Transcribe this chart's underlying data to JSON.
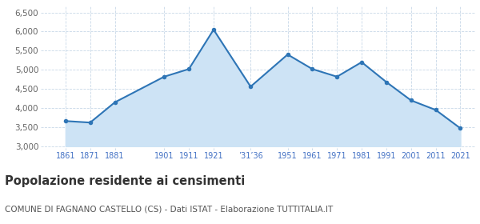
{
  "years": [
    1861,
    1871,
    1881,
    1901,
    1911,
    1921,
    1936,
    1951,
    1961,
    1971,
    1981,
    1991,
    2001,
    2011,
    2021
  ],
  "population": [
    3660,
    3620,
    4150,
    4820,
    5020,
    6050,
    4560,
    5400,
    5020,
    4820,
    5200,
    4680,
    4200,
    3950,
    3470
  ],
  "x_ticks_pos": [
    1861,
    1871,
    1881,
    1901,
    1911,
    1921,
    1936,
    1951,
    1961,
    1971,
    1981,
    1991,
    2001,
    2011,
    2021
  ],
  "x_tick_labels": [
    "1861",
    "1871",
    "1881",
    "1901",
    "1911",
    "1921",
    "’31’36",
    "1951",
    "1961",
    "1971",
    "1981",
    "1991",
    "2001",
    "2011",
    "2021"
  ],
  "yticks": [
    3000,
    3500,
    4000,
    4500,
    5000,
    5500,
    6000,
    6500
  ],
  "ylim": [
    2900,
    6650
  ],
  "xlim": [
    1851,
    2027
  ],
  "line_color": "#2e75b6",
  "fill_color": "#cde3f5",
  "marker_color": "#2e75b6",
  "background_color": "#ffffff",
  "grid_color": "#c8d8e8",
  "title": "Popolazione residente ai censimenti",
  "subtitle": "COMUNE DI FAGNANO CASTELLO (CS) - Dati ISTAT - Elaborazione TUTTITALIA.IT",
  "title_fontsize": 10.5,
  "subtitle_fontsize": 7.5,
  "tick_label_color": "#4472c4",
  "ytick_label_color": "#666666"
}
